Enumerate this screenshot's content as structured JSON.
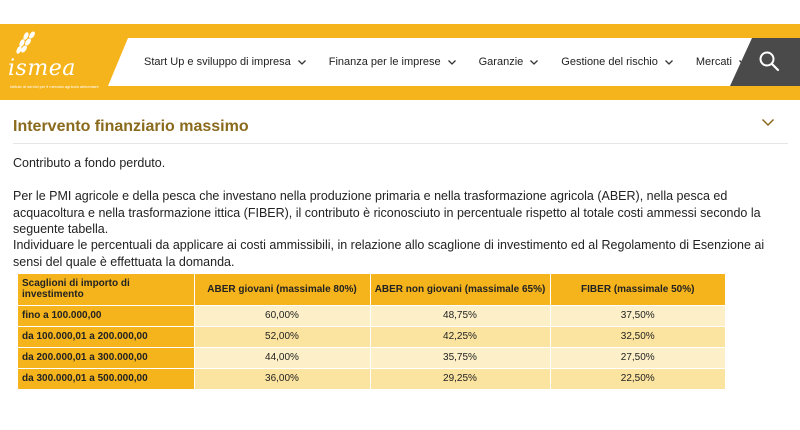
{
  "brand": {
    "name": "ismea",
    "tagline": "Istituto di servizi per il mercato agricolo alimentare",
    "color": "#f5b41c"
  },
  "nav": {
    "items": [
      {
        "label": "Start Up e sviluppo di impresa"
      },
      {
        "label": "Finanza per le imprese"
      },
      {
        "label": "Garanzie"
      },
      {
        "label": "Gestione del rischio"
      },
      {
        "label": "Mercati"
      }
    ],
    "search_icon": "search-icon"
  },
  "section": {
    "title": "Intervento finanziario massimo",
    "toggle_icon": "chevron-down-icon",
    "p1": "Contributo a fondo perduto.",
    "p2": "Per le PMI agricole e della pesca che investano nella produzione primaria e nella trasformazione agricola (ABER), nella pesca ed acquacoltura e nella trasformazione ittica (FIBER), il contributo è riconosciuto in percentuale rispetto al totale costi ammessi secondo la seguente tabella.",
    "p3": "Individuare le percentuali da applicare ai costi ammissibili, in relazione allo scaglione di investimento ed al Regolamento di Esenzione ai sensi del quale è effettuata la domanda."
  },
  "table": {
    "headers": [
      "Scaglioni di importo di investimento",
      "ABER giovani (massimale 80%)",
      "ABER non giovani (massimale 65%)",
      "FIBER (massimale 50%)"
    ],
    "rows": [
      [
        "fino a 100.000,00",
        "60,00%",
        "48,75%",
        "37,50%"
      ],
      [
        "da 100.000,01 a 200.000,00",
        "52,00%",
        "42,25%",
        "32,50%"
      ],
      [
        "da 200.000,01 a 300.000,00",
        "44,00%",
        "35,75%",
        "27,50%"
      ],
      [
        "da 300.000,01 a 500.000,00",
        "36,00%",
        "29,25%",
        "22,50%"
      ]
    ]
  }
}
